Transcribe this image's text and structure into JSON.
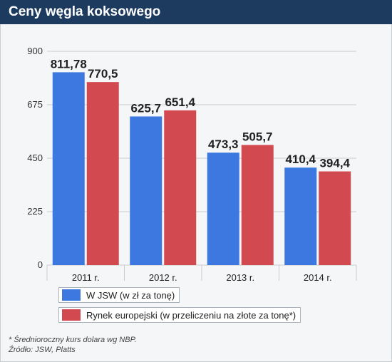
{
  "title": "Ceny węgla koksowego",
  "colors": {
    "header_bg": "#1d3a5f",
    "jsw": "#3c78e0",
    "europe": "#d24a4f",
    "background": "#f4f6f8",
    "grid": "#c8cdd2"
  },
  "legend": {
    "jsw": "W JSW (w zł za tonę)",
    "europe": "Rynek europejski (w przeliczeniu na złote za tonę*)"
  },
  "footnotes": {
    "note": "* Średnioroczny kurs dolara wg NBP.",
    "source": "Źródło: JSW, Platts"
  },
  "chart_data": {
    "type": "bar",
    "categories": [
      "2011 r.",
      "2012 r.",
      "2013 r.",
      "2014 r."
    ],
    "series": [
      {
        "name": "W JSW (w zł za tonę)",
        "values": [
          811.78,
          625.7,
          473.3,
          410.4
        ],
        "labels": [
          "811,78",
          "625,7",
          "473,3",
          "410,4"
        ]
      },
      {
        "name": "Rynek europejski (w przeliczeniu na złote za tonę*)",
        "values": [
          770.5,
          651.4,
          505.7,
          394.4
        ],
        "labels": [
          "770,5",
          "651,4",
          "505,7",
          "394,4"
        ]
      }
    ],
    "yticks": [
      0,
      225,
      450,
      675,
      900
    ],
    "ylim": [
      0,
      900
    ],
    "grid": true,
    "legend_position": "bottom-left"
  }
}
